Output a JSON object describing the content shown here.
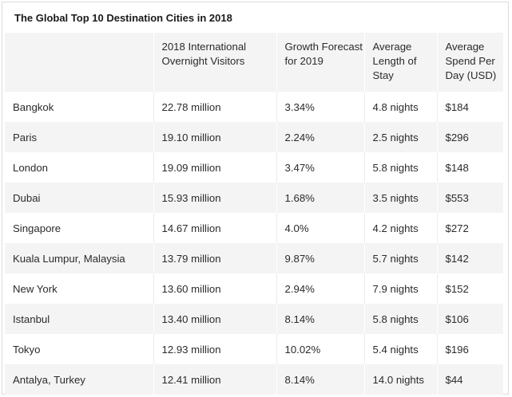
{
  "table": {
    "title": "The Global Top 10 Destination Cities in 2018",
    "headers": [
      "",
      "2018 International Overnight Visitors",
      "Growth Forecast for 2019",
      "Average Length of Stay",
      "Average Spend Per Day (USD)"
    ],
    "rows": [
      [
        "Bangkok",
        "22.78 million",
        "3.34%",
        "4.8 nights",
        "$184"
      ],
      [
        "Paris",
        "19.10 million",
        "2.24%",
        "2.5 nights",
        "$296"
      ],
      [
        "London",
        "19.09 million",
        "3.47%",
        "5.8 nights",
        "$148"
      ],
      [
        "Dubai",
        "15.93 million",
        "1.68%",
        "3.5 nights",
        "$553"
      ],
      [
        "Singapore",
        "14.67 million",
        "4.0%",
        "4.2 nights",
        "$272"
      ],
      [
        "Kuala Lumpur, Malaysia",
        "13.79 million",
        "9.87%",
        "5.7 nights",
        "$142"
      ],
      [
        "New York",
        "13.60 million",
        "2.94%",
        "7.9 nights",
        "$152"
      ],
      [
        "Istanbul",
        "13.40 million",
        "8.14%",
        "5.8 nights",
        "$106"
      ],
      [
        "Tokyo",
        "12.93 million",
        "10.02%",
        "5.4 nights",
        "$196"
      ],
      [
        "Antalya, Turkey",
        "12.41 million",
        "8.14%",
        "14.0 nights",
        "$44"
      ]
    ]
  }
}
